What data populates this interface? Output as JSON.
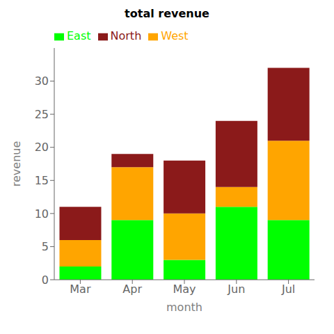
{
  "chart_data": {
    "type": "bar",
    "title": "total revenue",
    "xlabel": "month",
    "ylabel": "revenue",
    "categories": [
      "Mar",
      "Apr",
      "May",
      "Jun",
      "Jul"
    ],
    "series": [
      {
        "name": "East",
        "color": "#00FF00",
        "values": [
          2,
          9,
          3,
          11,
          9
        ]
      },
      {
        "name": "West",
        "color": "#FFA500",
        "values": [
          4,
          8,
          7,
          3,
          12
        ]
      },
      {
        "name": "North",
        "color": "#8B1A1A",
        "values": [
          5,
          2,
          8,
          10,
          11
        ]
      }
    ],
    "stacked": true,
    "ylim": [
      0,
      35
    ],
    "yticks": [
      0,
      5,
      10,
      15,
      20,
      25,
      30
    ],
    "legend": "upper left",
    "grid": false
  }
}
